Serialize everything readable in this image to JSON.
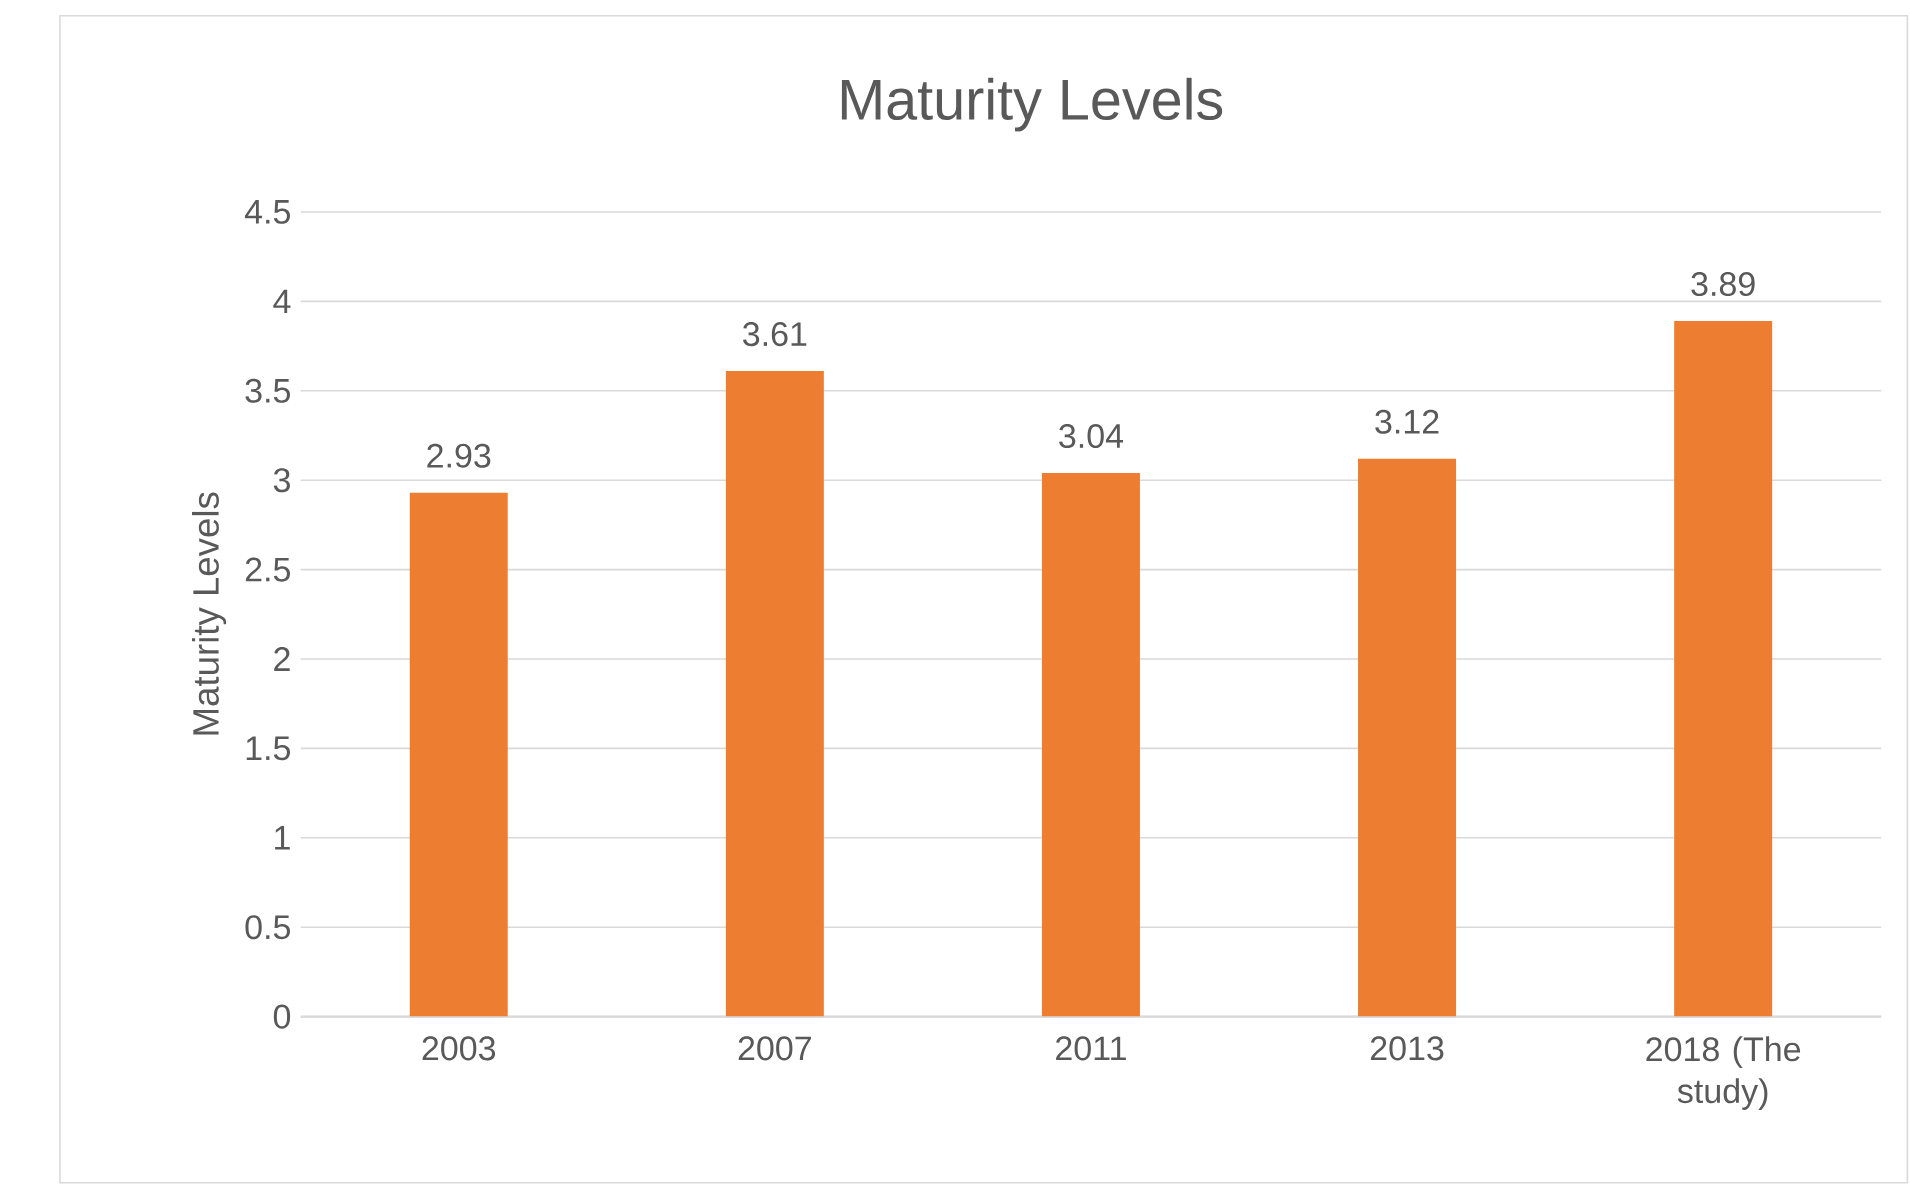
{
  "chart_data": {
    "type": "bar",
    "title": "Maturity Levels",
    "ylabel": "Maturity Levels",
    "categories": [
      "2003",
      "2007",
      "2011",
      "2013",
      "2018 (The study)"
    ],
    "values": [
      2.93,
      3.61,
      3.04,
      3.12,
      3.89
    ],
    "color": "#ed7d31",
    "ylim": [
      0,
      4.5
    ],
    "yticks": [
      0,
      0.5,
      1,
      1.5,
      2,
      2.5,
      3,
      3.5,
      4,
      4.5
    ],
    "grid": "y",
    "data_labels": true
  }
}
